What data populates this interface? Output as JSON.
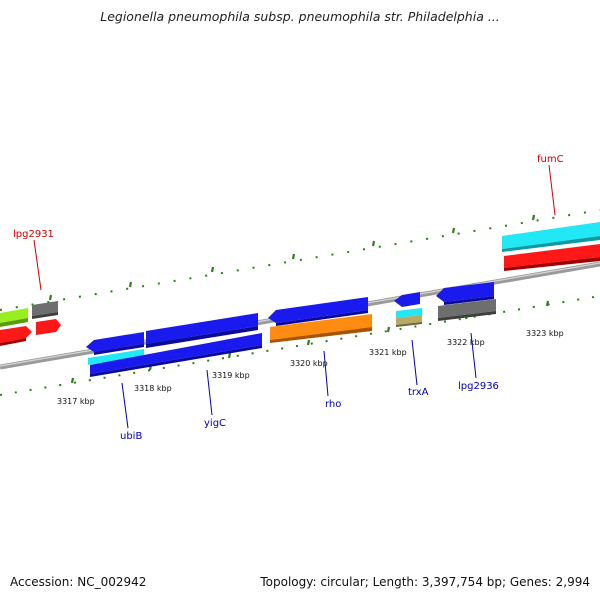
{
  "title": "Legionella pneumophila subsp. pneumophila str. Philadelphia ...",
  "footer": {
    "accession": "Accession: NC_002942",
    "summary": "Topology: circular; Length: 3,397,754 bp; Genes: 2,994"
  },
  "colors": {
    "backbone": "#8a8a8a",
    "tick": "#2e7d1e",
    "label_red": "#cc0000",
    "label_blue": "#0000aa"
  },
  "ticks": [
    "3317 kbp",
    "3318 kbp",
    "3319 kbp",
    "3320 kbp",
    "3321 kbp",
    "3322 kbp",
    "3323 kbp"
  ],
  "gene_labels": {
    "lpg2931": "lpg2931",
    "fumC": "fumC",
    "ubiB": "ubiB",
    "yigC": "yigC",
    "rho": "rho",
    "trxA": "trxA",
    "lpg2936": "lpg2936"
  }
}
